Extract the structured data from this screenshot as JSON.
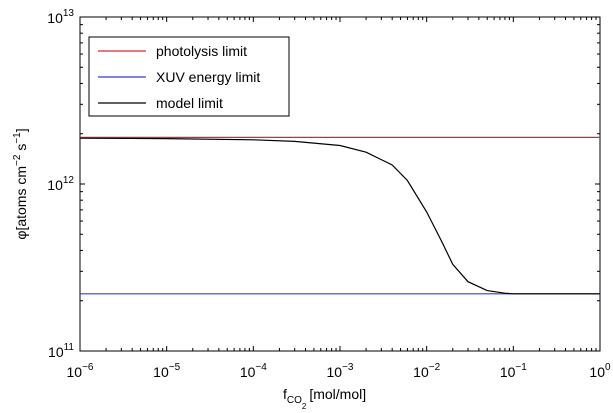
{
  "chart_data": {
    "type": "line",
    "xscale": "log",
    "yscale": "log",
    "xlim": [
      1e-06,
      1
    ],
    "ylim": [
      100000000000.0,
      10000000000000.0
    ],
    "ylabel": "φ [atoms cm⁻² s⁻¹]",
    "xlabel": "f_CO₂ [mol/mol]",
    "xlabel_parts": {
      "f": "f",
      "sub": "CO",
      "subsub": "2",
      "unit": "[mol/mol]"
    },
    "ylabel_parts": {
      "phi": "φ",
      "open": "[atoms cm",
      "exp1": "−2",
      "s": " s",
      "exp2": "−1",
      "close": "]"
    },
    "x_ticks": [
      {
        "value": 1e-06,
        "base": "10",
        "exp": "−6"
      },
      {
        "value": 1e-05,
        "base": "10",
        "exp": "−5"
      },
      {
        "value": 0.0001,
        "base": "10",
        "exp": "−4"
      },
      {
        "value": 0.001,
        "base": "10",
        "exp": "−3"
      },
      {
        "value": 0.01,
        "base": "10",
        "exp": "−2"
      },
      {
        "value": 0.1,
        "base": "10",
        "exp": "−1"
      },
      {
        "value": 1,
        "base": "10",
        "exp": "0"
      }
    ],
    "y_ticks": [
      {
        "value": 100000000000.0,
        "base": "10",
        "exp": "11"
      },
      {
        "value": 1000000000000.0,
        "base": "10",
        "exp": "12"
      },
      {
        "value": 10000000000000.0,
        "base": "10",
        "exp": "13"
      }
    ],
    "grid": false,
    "legend_position": "top-left",
    "series": [
      {
        "name": "photolysis limit",
        "color": "#d42a2a",
        "x": [
          1e-06,
          1
        ],
        "y": [
          1900000000000.0,
          1900000000000.0
        ]
      },
      {
        "name": "XUV energy limit",
        "color": "#3a3ad6",
        "x": [
          1e-06,
          1
        ],
        "y": [
          220000000000.0,
          220000000000.0
        ]
      },
      {
        "name": "model limit",
        "color": "#000000",
        "x": [
          1e-06,
          1e-05,
          0.0001,
          0.0003,
          0.001,
          0.002,
          0.004,
          0.006,
          0.01,
          0.015,
          0.02,
          0.03,
          0.05,
          0.08,
          0.1,
          0.3,
          1
        ],
        "y": [
          1880000000000.0,
          1870000000000.0,
          1840000000000.0,
          1800000000000.0,
          1700000000000.0,
          1550000000000.0,
          1300000000000.0,
          1050000000000.0,
          680000000000.0,
          450000000000.0,
          330000000000.0,
          260000000000.0,
          230000000000.0,
          222000000000.0,
          220000000000.0,
          220000000000.0,
          220000000000.0
        ]
      }
    ]
  }
}
